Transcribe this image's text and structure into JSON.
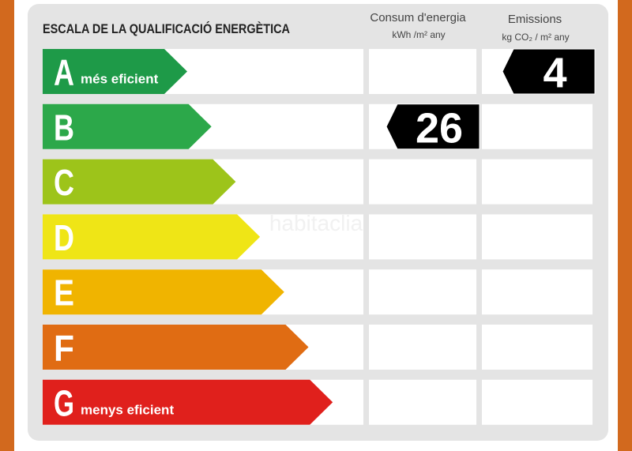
{
  "header": {
    "title": "ESCALA DE LA QUALIFICACIÓ ENERGÈTICA",
    "columns": [
      {
        "title": "Consum d'energia",
        "unit": "kWh /m² any"
      },
      {
        "title": "Emissions",
        "unit": "kg CO₂ / m² any"
      }
    ]
  },
  "watermark": "habitaclia",
  "rows": [
    {
      "letter": "A",
      "note": "més eficient",
      "color": "#1e9a48",
      "emissions": 4
    },
    {
      "letter": "B",
      "color": "#2ca84a",
      "consumption": 26
    },
    {
      "letter": "C",
      "color": "#9dc41a"
    },
    {
      "letter": "D",
      "color": "#efe516"
    },
    {
      "letter": "E",
      "color": "#f0b400"
    },
    {
      "letter": "F",
      "color": "#e06c13"
    },
    {
      "letter": "G",
      "note": "menys eficient",
      "color": "#e0201c"
    }
  ]
}
